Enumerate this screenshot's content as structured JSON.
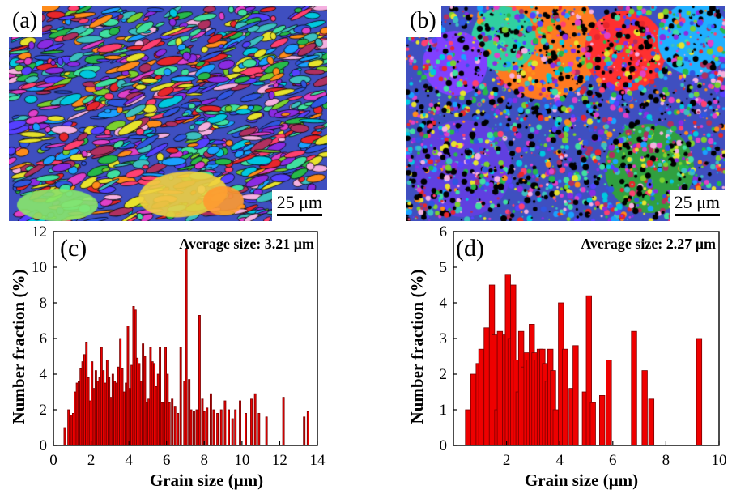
{
  "panels": [
    {
      "label": "(a)",
      "scale_text": "25 μm"
    },
    {
      "label": "(b)",
      "scale_text": "25 μm"
    }
  ],
  "colors": {
    "bar_fill": "#ee0000",
    "bar_stroke": "#7a0000",
    "axis": "#000000"
  },
  "chart_data": [
    {
      "type": "bar",
      "panel_label": "(c)",
      "annotation": "Average size: 3.21 μm",
      "xlabel": "Grain size (μm)",
      "ylabel": "Number fraction (%)",
      "xlim": [
        0,
        14
      ],
      "ylim": [
        0,
        12
      ],
      "xticks": [
        "0",
        "2",
        "4",
        "6",
        "8",
        "10",
        "12",
        "14"
      ],
      "yticks": [
        "0",
        "2",
        "4",
        "6",
        "8",
        "10",
        "12"
      ],
      "bar_width": 0.09,
      "x": [
        0.6,
        0.8,
        0.95,
        1.05,
        1.15,
        1.25,
        1.35,
        1.45,
        1.55,
        1.65,
        1.75,
        1.85,
        1.95,
        2.05,
        2.15,
        2.25,
        2.35,
        2.45,
        2.55,
        2.65,
        2.75,
        2.85,
        2.95,
        3.05,
        3.15,
        3.25,
        3.35,
        3.45,
        3.55,
        3.65,
        3.75,
        3.85,
        3.95,
        4.05,
        4.15,
        4.25,
        4.35,
        4.45,
        4.55,
        4.65,
        4.75,
        4.85,
        4.95,
        5.05,
        5.15,
        5.25,
        5.35,
        5.45,
        5.55,
        5.65,
        5.75,
        5.85,
        5.95,
        6.05,
        6.15,
        6.3,
        6.45,
        6.6,
        6.75,
        6.95,
        7.05,
        7.2,
        7.3,
        7.45,
        7.6,
        7.75,
        7.9,
        8.0,
        8.15,
        8.35,
        8.5,
        8.7,
        8.9,
        9.1,
        9.3,
        9.5,
        9.65,
        9.9,
        10.2,
        10.5,
        10.7,
        10.9,
        11.3,
        12.2,
        13.3,
        13.5
      ],
      "values": [
        1.0,
        2.0,
        1.7,
        1.8,
        3.0,
        3.5,
        3.6,
        4.3,
        4.7,
        5.1,
        5.8,
        3.8,
        2.5,
        4.7,
        3.2,
        4.2,
        3.6,
        3.8,
        5.5,
        4.2,
        3.5,
        4.8,
        3.8,
        2.7,
        4.0,
        3.6,
        3.5,
        4.4,
        6.0,
        4.3,
        3.0,
        3.5,
        6.7,
        3.2,
        4.5,
        7.8,
        7.6,
        4.9,
        4.6,
        3.6,
        5.7,
        5.0,
        2.4,
        2.6,
        5.5,
        4.7,
        4.6,
        3.3,
        4.0,
        5.5,
        2.4,
        2.4,
        5.5,
        4.0,
        2.4,
        2.6,
        2.2,
        1.8,
        5.5,
        3.6,
        11.0,
        3.7,
        2.0,
        1.9,
        2.0,
        7.3,
        2.6,
        1.9,
        2.1,
        2.9,
        2.0,
        1.8,
        2.0,
        2.5,
        2.0,
        1.5,
        2.0,
        2.5,
        1.8,
        2.6,
        2.9,
        1.8,
        1.6,
        2.7,
        1.6,
        1.9
      ]
    },
    {
      "type": "bar",
      "panel_label": "(d)",
      "annotation": "Average size: 2.27 μm",
      "xlabel": "Grain size (μm)",
      "ylabel": "Number fraction (%)",
      "xlim": [
        0,
        10
      ],
      "ylim": [
        0,
        6
      ],
      "xticks": [
        "2",
        "4",
        "6",
        "8",
        "10"
      ],
      "xtick_values": [
        2,
        4,
        6,
        8,
        10
      ],
      "yticks": [
        "0",
        "1",
        "2",
        "3",
        "4",
        "5",
        "6"
      ],
      "bar_width": 0.2,
      "x": [
        0.55,
        0.75,
        0.95,
        1.05,
        1.25,
        1.45,
        1.55,
        1.65,
        1.75,
        1.95,
        2.05,
        2.15,
        2.25,
        2.35,
        2.45,
        2.55,
        2.65,
        2.75,
        2.85,
        2.95,
        3.05,
        3.15,
        3.25,
        3.35,
        3.45,
        3.55,
        3.65,
        3.75,
        3.85,
        4.05,
        4.2,
        4.45,
        4.6,
        4.95,
        5.1,
        5.25,
        5.6,
        5.85,
        6.8,
        7.2,
        7.45,
        9.25
      ],
      "values": [
        1.0,
        2.0,
        2.3,
        2.7,
        3.3,
        4.5,
        3.1,
        1.0,
        3.2,
        3.1,
        4.8,
        3.0,
        4.5,
        2.4,
        1.5,
        3.2,
        2.2,
        2.6,
        2.4,
        3.4,
        2.6,
        2.4,
        2.7,
        2.7,
        2.3,
        1.8,
        2.7,
        2.1,
        1.0,
        4.0,
        2.7,
        1.6,
        2.8,
        1.5,
        4.2,
        1.2,
        1.4,
        2.4,
        3.2,
        2.1,
        1.3,
        3.0
      ]
    }
  ]
}
